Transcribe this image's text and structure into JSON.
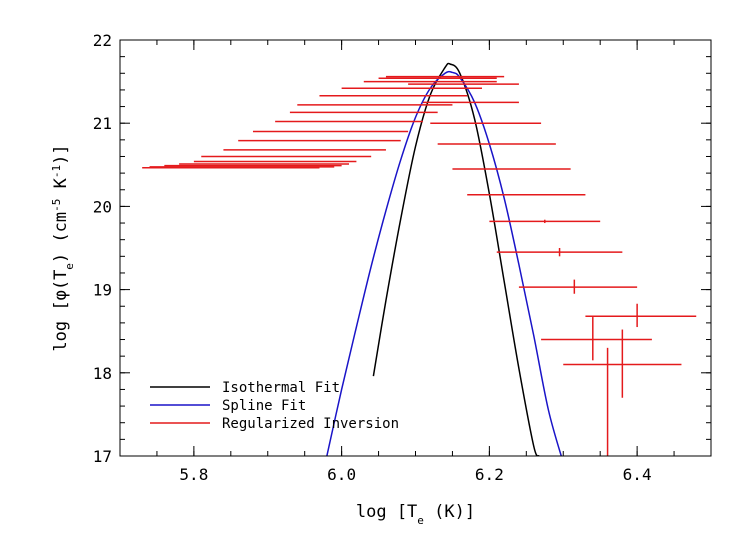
{
  "chart_data": {
    "type": "line",
    "xlabel": "log [T_e (K)]",
    "ylabel": "log [φ(T_e) (cm^-5 K^-1)]",
    "xlim": [
      5.7,
      6.5
    ],
    "ylim": [
      17,
      22
    ],
    "x_ticks": [
      "5.8",
      "6.0",
      "6.2",
      "6.4"
    ],
    "y_ticks": [
      "17",
      "18",
      "19",
      "20",
      "21",
      "22"
    ],
    "legend_placement": "bottom-left",
    "colors": {
      "isothermal": "#000000",
      "spline": "#1a14c8",
      "inversion": "#e41a1c"
    },
    "series": [
      {
        "name": "Isothermal Fit",
        "kind": "line",
        "x": [
          6.043,
          6.06,
          6.08,
          6.1,
          6.12,
          6.14,
          6.147,
          6.16,
          6.18,
          6.2,
          6.22,
          6.24,
          6.26,
          6.267
        ],
        "y": [
          17.96,
          18.87,
          19.85,
          20.72,
          21.34,
          21.67,
          21.71,
          21.6,
          21.05,
          20.15,
          19.1,
          18.05,
          17.12,
          17.0
        ]
      },
      {
        "name": "Spline Fit",
        "kind": "line",
        "x": [
          5.98,
          6.0,
          6.02,
          6.04,
          6.06,
          6.08,
          6.1,
          6.12,
          6.14,
          6.15,
          6.16,
          6.18,
          6.2,
          6.22,
          6.24,
          6.26,
          6.28,
          6.3
        ],
        "y": [
          17.0,
          17.8,
          18.55,
          19.28,
          19.95,
          20.56,
          21.07,
          21.42,
          21.6,
          21.61,
          21.55,
          21.25,
          20.75,
          20.1,
          19.3,
          18.45,
          17.55,
          16.92
        ]
      },
      {
        "name": "Regularized Inversion",
        "kind": "errorbar",
        "points": [
          {
            "x": 5.85,
            "xerr": [
              5.73,
              5.97
            ],
            "y": 20.465
          },
          {
            "x": 5.85,
            "xerr": [
              5.74,
              5.99
            ],
            "y": 20.475
          },
          {
            "x": 5.86,
            "xerr": [
              5.76,
              6.0
            ],
            "y": 20.49
          },
          {
            "x": 5.875,
            "xerr": [
              5.78,
              6.01
            ],
            "y": 20.51
          },
          {
            "x": 5.89,
            "xerr": [
              5.8,
              6.02
            ],
            "y": 20.54
          },
          {
            "x": 5.91,
            "xerr": [
              5.81,
              6.04
            ],
            "y": 20.6
          },
          {
            "x": 5.93,
            "xerr": [
              5.84,
              6.06
            ],
            "y": 20.68
          },
          {
            "x": 5.95,
            "xerr": [
              5.86,
              6.08
            ],
            "y": 20.79
          },
          {
            "x": 5.97,
            "xerr": [
              5.88,
              6.09
            ],
            "y": 20.9
          },
          {
            "x": 6.0,
            "xerr": [
              5.91,
              6.11
            ],
            "y": 21.02
          },
          {
            "x": 6.02,
            "xerr": [
              5.93,
              6.13
            ],
            "y": 21.13
          },
          {
            "x": 6.04,
            "xerr": [
              5.94,
              6.15
            ],
            "y": 21.22
          },
          {
            "x": 6.065,
            "xerr": [
              5.97,
              6.17
            ],
            "y": 21.33
          },
          {
            "x": 6.09,
            "xerr": [
              6.0,
              6.19
            ],
            "y": 21.42
          },
          {
            "x": 6.115,
            "xerr": [
              6.03,
              6.21
            ],
            "y": 21.5
          },
          {
            "x": 6.135,
            "xerr": [
              6.05,
              6.21
            ],
            "y": 21.54
          },
          {
            "x": 6.155,
            "xerr": [
              6.06,
              6.22
            ],
            "y": 21.56
          },
          {
            "x": 6.165,
            "xerr": [
              6.09,
              6.24
            ],
            "y": 21.47
          },
          {
            "x": 6.18,
            "xerr": [
              6.11,
              6.24
            ],
            "y": 21.25
          },
          {
            "x": 6.19,
            "xerr": [
              6.12,
              6.27
            ],
            "y": 21.0
          },
          {
            "x": 6.21,
            "xerr": [
              6.13,
              6.29
            ],
            "y": 20.75
          },
          {
            "x": 6.23,
            "xerr": [
              6.15,
              6.31
            ],
            "y": 20.45
          },
          {
            "x": 6.25,
            "xerr": [
              6.17,
              6.33
            ],
            "y": 20.14
          },
          {
            "x": 6.275,
            "xerr": [
              6.2,
              6.35
            ],
            "y": 19.82,
            "yerr": [
              19.8,
              19.84
            ]
          },
          {
            "x": 6.295,
            "xerr": [
              6.21,
              6.38
            ],
            "y": 19.45,
            "yerr": [
              19.4,
              19.5
            ]
          },
          {
            "x": 6.315,
            "xerr": [
              6.24,
              6.4
            ],
            "y": 19.03,
            "yerr": [
              18.95,
              19.12
            ]
          },
          {
            "x": 6.4,
            "xerr": [
              6.33,
              6.48
            ],
            "y": 18.68,
            "yerr": [
              18.55,
              18.83
            ]
          },
          {
            "x": 6.38,
            "xerr": [
              6.3,
              6.46
            ],
            "y": 18.1,
            "yerr": [
              17.7,
              18.52
            ]
          },
          {
            "x": 6.34,
            "xerr": [
              6.27,
              6.42
            ],
            "y": 18.4,
            "yerr": [
              18.15,
              18.67
            ]
          },
          {
            "x": 6.36,
            "xerr": [
              6.36,
              6.36
            ],
            "y": 17.6,
            "yerr": [
              16.95,
              18.3
            ]
          }
        ]
      }
    ]
  }
}
